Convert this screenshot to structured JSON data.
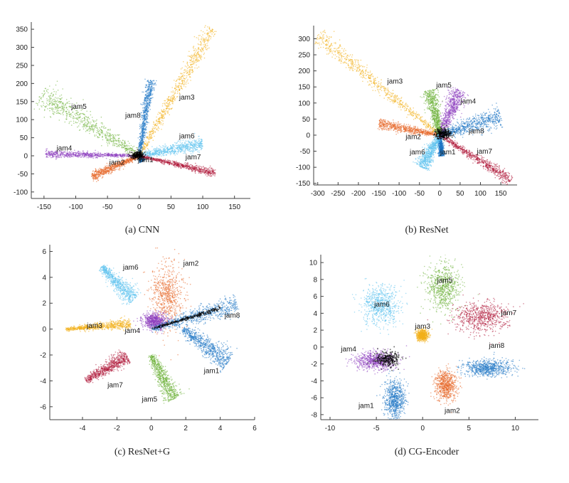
{
  "colors": {
    "jam1": "#1f77c4",
    "jam2": "#e8692c",
    "jam3": "#f2b11c",
    "jam4": "#8e3fbf",
    "jam5": "#6fb33c",
    "jam6": "#5ec3ee",
    "jam7": "#b01c3d",
    "jam8": "#1f77c4",
    "center": "#000000",
    "axis": "#404040",
    "tick_text": "#222222"
  },
  "chart_data": [
    {
      "id": "cnn",
      "type": "scatter",
      "caption": "(a) CNN",
      "xlim": [
        -170,
        175
      ],
      "ylim": [
        -118,
        362
      ],
      "xticks": [
        -150,
        -100,
        -50,
        0,
        50,
        100,
        150
      ],
      "yticks": [
        -100,
        -50,
        0,
        50,
        100,
        150,
        200,
        250,
        300,
        350
      ],
      "grid": false,
      "clusters": [
        {
          "name": "jam1",
          "kind": "line",
          "from": [
            0,
            0
          ],
          "to": [
            5,
            -15
          ],
          "spread": 2,
          "label": "jam1",
          "label_at": [
            10,
            -18
          ]
        },
        {
          "name": "jam2",
          "kind": "line",
          "from": [
            0,
            0
          ],
          "to": [
            -75,
            -58
          ],
          "spread": 4,
          "label": "jam2",
          "label_at": [
            -35,
            -25
          ]
        },
        {
          "name": "jam3",
          "kind": "line",
          "from": [
            0,
            0
          ],
          "to": [
            115,
            352
          ],
          "spread": 6,
          "label": "jam3",
          "label_at": [
            75,
            155
          ]
        },
        {
          "name": "jam4",
          "kind": "line",
          "from": [
            0,
            0
          ],
          "to": [
            -148,
            5
          ],
          "spread": 3,
          "label": "jam4",
          "label_at": [
            -118,
            15
          ]
        },
        {
          "name": "jam5",
          "kind": "line",
          "from": [
            0,
            0
          ],
          "to": [
            -155,
            170
          ],
          "spread": 10,
          "label": "jam5",
          "label_at": [
            -95,
            130
          ]
        },
        {
          "name": "jam6",
          "kind": "line",
          "from": [
            0,
            0
          ],
          "to": [
            100,
            35
          ],
          "spread": 6,
          "label": "jam6",
          "label_at": [
            75,
            48
          ]
        },
        {
          "name": "jam7",
          "kind": "line",
          "from": [
            0,
            0
          ],
          "to": [
            120,
            -48
          ],
          "spread": 3,
          "label": "jam7",
          "label_at": [
            85,
            -10
          ]
        },
        {
          "name": "jam8",
          "kind": "line",
          "from": [
            0,
            0
          ],
          "to": [
            18,
            210
          ],
          "spread": 4,
          "label": "jam8",
          "label_at": [
            -10,
            105
          ]
        },
        {
          "name": "center",
          "kind": "blob",
          "center": [
            -2,
            2
          ],
          "sx": 5,
          "sy": 5,
          "label": ""
        }
      ]
    },
    {
      "id": "resnet",
      "type": "scatter",
      "caption": "(b) ResNet",
      "xlim": [
        -310,
        190
      ],
      "ylim": [
        -155,
        332
      ],
      "xticks": [
        -300,
        -250,
        -200,
        -150,
        -100,
        -50,
        0,
        50,
        100,
        150
      ],
      "yticks": [
        -150,
        -100,
        -50,
        0,
        50,
        100,
        150,
        200,
        250,
        300
      ],
      "grid": false,
      "clusters": [
        {
          "name": "jam1",
          "kind": "line",
          "from": [
            0,
            0
          ],
          "to": [
            5,
            -65
          ],
          "spread": 4,
          "label": "jam1",
          "label_at": [
            20,
            -60
          ]
        },
        {
          "name": "jam2",
          "kind": "line",
          "from": [
            0,
            0
          ],
          "to": [
            -150,
            35
          ],
          "spread": 7,
          "label": "jam2",
          "label_at": [
            -65,
            -12
          ]
        },
        {
          "name": "jam3",
          "kind": "line",
          "from": [
            0,
            0
          ],
          "to": [
            -300,
            310
          ],
          "spread": 10,
          "label": "jam3",
          "label_at": [
            -110,
            160
          ]
        },
        {
          "name": "jam4",
          "kind": "line",
          "from": [
            0,
            0
          ],
          "to": [
            50,
            140
          ],
          "spread": 12,
          "label": "jam4",
          "label_at": [
            70,
            98
          ]
        },
        {
          "name": "jam5",
          "kind": "line",
          "from": [
            0,
            0
          ],
          "to": [
            -25,
            140
          ],
          "spread": 10,
          "label": "jam5",
          "label_at": [
            10,
            148
          ]
        },
        {
          "name": "jam6",
          "kind": "line",
          "from": [
            0,
            0
          ],
          "to": [
            -45,
            -100
          ],
          "spread": 10,
          "label": "jam6",
          "label_at": [
            -55,
            -60
          ]
        },
        {
          "name": "jam7",
          "kind": "line",
          "from": [
            0,
            0
          ],
          "to": [
            175,
            -140
          ],
          "spread": 7,
          "label": "jam7",
          "label_at": [
            110,
            -58
          ]
        },
        {
          "name": "jam8",
          "kind": "line",
          "from": [
            0,
            0
          ],
          "to": [
            150,
            58
          ],
          "spread": 14,
          "label": "jam8",
          "label_at": [
            90,
            5
          ]
        },
        {
          "name": "center",
          "kind": "blob",
          "center": [
            8,
            5
          ],
          "sx": 10,
          "sy": 8,
          "label": ""
        }
      ]
    },
    {
      "id": "resnet_g",
      "type": "scatter",
      "caption": "(c) ResNet+G",
      "xlim": [
        -5.9,
        6
      ],
      "ylim": [
        -7.0,
        6.3
      ],
      "xticks": [
        -4,
        -2,
        0,
        2,
        4,
        6
      ],
      "yticks": [
        -6,
        -4,
        -2,
        0,
        2,
        4,
        6
      ],
      "grid": false,
      "clusters": [
        {
          "name": "jam1",
          "kind": "line",
          "from": [
            1.8,
            0
          ],
          "to": [
            4.5,
            -2.5
          ],
          "spread": 0.35,
          "label": "jam1",
          "label_at": [
            3.5,
            -3.4
          ]
        },
        {
          "name": "jam2",
          "kind": "blob",
          "center": [
            0.95,
            2.6
          ],
          "sx": 0.45,
          "sy": 1.25,
          "label": "jam2",
          "label_at": [
            2.3,
            4.9
          ]
        },
        {
          "name": "jam3",
          "kind": "line",
          "from": [
            -5.0,
            0
          ],
          "to": [
            -1.2,
            0.4
          ],
          "spread": 0.15,
          "label": "jam3",
          "label_at": [
            -3.3,
            0.1
          ]
        },
        {
          "name": "jam4",
          "kind": "blob",
          "center": [
            0.2,
            0.6
          ],
          "sx": 0.35,
          "sy": 0.3,
          "label": "jam4",
          "label_at": [
            -1.1,
            -0.3
          ]
        },
        {
          "name": "jam5",
          "kind": "line",
          "from": [
            0.0,
            -2.0
          ],
          "to": [
            1.3,
            -5.4
          ],
          "spread": 0.3,
          "label": "jam5",
          "label_at": [
            -0.1,
            -5.6
          ]
        },
        {
          "name": "jam6",
          "kind": "line",
          "from": [
            -2.9,
            4.8
          ],
          "to": [
            -1.0,
            2.3
          ],
          "spread": 0.3,
          "label": "jam6",
          "label_at": [
            -1.2,
            4.6
          ]
        },
        {
          "name": "jam7",
          "kind": "line",
          "from": [
            -3.8,
            -4.0
          ],
          "to": [
            -1.4,
            -2.1
          ],
          "spread": 0.25,
          "label": "jam7",
          "label_at": [
            -2.1,
            -4.5
          ]
        },
        {
          "name": "jam8",
          "kind": "line",
          "from": [
            0.0,
            0.0
          ],
          "to": [
            5.0,
            1.9
          ],
          "spread": 0.3,
          "label": "jam8",
          "label_at": [
            4.7,
            0.9
          ]
        },
        {
          "name": "center",
          "kind": "line",
          "from": [
            0.0,
            0.0
          ],
          "to": [
            4.0,
            1.6
          ],
          "spread": 0.07,
          "label": ""
        }
      ]
    },
    {
      "id": "cg_encoder",
      "type": "scatter",
      "caption": "(d) CG-Encoder",
      "xlim": [
        -11,
        12.5
      ],
      "ylim": [
        -8.6,
        10.6
      ],
      "xticks": [
        -10,
        -5,
        0,
        5,
        10
      ],
      "yticks": [
        -8,
        -6,
        -4,
        -2,
        0,
        2,
        4,
        6,
        8,
        10
      ],
      "grid": false,
      "clusters": [
        {
          "name": "jam1",
          "kind": "blob",
          "center": [
            -3.0,
            -6.2
          ],
          "sx": 0.55,
          "sy": 1.1,
          "label": "jam1",
          "label_at": [
            -6.1,
            -7.2
          ]
        },
        {
          "name": "jam2",
          "kind": "blob",
          "center": [
            2.5,
            -4.5
          ],
          "sx": 0.6,
          "sy": 0.9,
          "label": "jam2",
          "label_at": [
            3.2,
            -7.8
          ]
        },
        {
          "name": "jam3",
          "kind": "blob",
          "center": [
            0.0,
            1.4
          ],
          "sx": 0.3,
          "sy": 0.3,
          "label": "jam3",
          "label_at": [
            0.0,
            2.2
          ]
        },
        {
          "name": "jam4",
          "kind": "blob",
          "center": [
            -5.2,
            -1.6
          ],
          "sx": 1.1,
          "sy": 0.55,
          "label": "jam4",
          "label_at": [
            -8.0,
            -0.5
          ]
        },
        {
          "name": "jam5",
          "kind": "blob",
          "center": [
            2.2,
            7.1
          ],
          "sx": 0.9,
          "sy": 1.4,
          "label": "jam5",
          "label_at": [
            2.4,
            7.6
          ]
        },
        {
          "name": "jam6",
          "kind": "blob",
          "center": [
            -4.5,
            4.9
          ],
          "sx": 1.0,
          "sy": 1.2,
          "label": "jam6",
          "label_at": [
            -4.4,
            4.8
          ]
        },
        {
          "name": "jam7",
          "kind": "blob",
          "center": [
            6.3,
            3.5
          ],
          "sx": 1.4,
          "sy": 0.9,
          "label": "jam7",
          "label_at": [
            9.3,
            3.8
          ]
        },
        {
          "name": "jam8",
          "kind": "blob",
          "center": [
            7.0,
            -2.5
          ],
          "sx": 1.3,
          "sy": 0.5,
          "label": "jam8",
          "label_at": [
            8.0,
            -0.1
          ]
        },
        {
          "name": "center",
          "kind": "blob",
          "center": [
            -3.8,
            -1.4
          ],
          "sx": 0.7,
          "sy": 0.45,
          "label": ""
        }
      ]
    }
  ]
}
